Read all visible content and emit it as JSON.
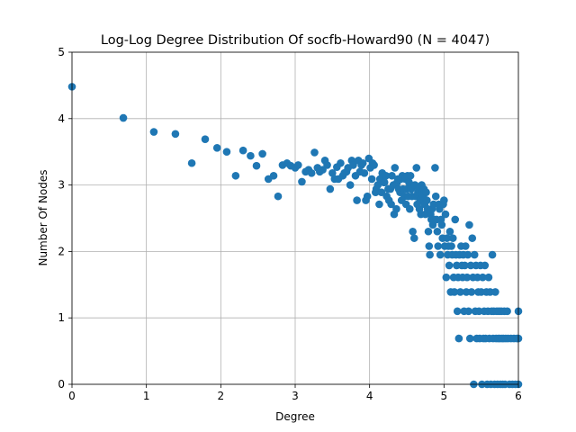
{
  "chart_data": {
    "type": "scatter",
    "title": "Log-Log Degree Distribution Of socfb-Howard90 (N = 4047)",
    "xlabel": "Degree",
    "ylabel": "Number Of Nodes",
    "xlim": [
      0,
      6
    ],
    "ylim": [
      0,
      5
    ],
    "xticks": [
      "0",
      "1",
      "2",
      "3",
      "4",
      "5",
      "6"
    ],
    "yticks": [
      "0",
      "1",
      "2",
      "3",
      "4",
      "5"
    ],
    "grid": true,
    "marker_color": "#1f77b4",
    "points": [
      [
        0.0,
        4.48
      ],
      [
        0.69,
        4.01
      ],
      [
        1.1,
        3.8
      ],
      [
        1.39,
        3.77
      ],
      [
        1.61,
        3.33
      ],
      [
        1.79,
        3.69
      ],
      [
        1.95,
        3.56
      ],
      [
        2.08,
        3.5
      ],
      [
        2.2,
        3.14
      ],
      [
        2.3,
        3.52
      ],
      [
        2.4,
        3.44
      ],
      [
        2.48,
        3.29
      ],
      [
        2.56,
        3.47
      ],
      [
        2.64,
        3.09
      ],
      [
        2.71,
        3.14
      ],
      [
        2.77,
        2.83
      ],
      [
        2.83,
        3.3
      ],
      [
        2.89,
        3.33
      ],
      [
        2.94,
        3.29
      ],
      [
        3.0,
        3.26
      ],
      [
        3.04,
        3.3
      ],
      [
        3.09,
        3.05
      ],
      [
        3.14,
        3.2
      ],
      [
        3.18,
        3.23
      ],
      [
        3.22,
        3.18
      ],
      [
        3.26,
        3.49
      ],
      [
        3.3,
        3.26
      ],
      [
        3.33,
        3.2
      ],
      [
        3.37,
        3.23
      ],
      [
        3.4,
        3.37
      ],
      [
        3.43,
        3.3
      ],
      [
        3.47,
        2.94
      ],
      [
        3.5,
        3.18
      ],
      [
        3.53,
        3.09
      ],
      [
        3.56,
        3.27
      ],
      [
        3.58,
        3.09
      ],
      [
        3.61,
        3.33
      ],
      [
        3.64,
        3.14
      ],
      [
        3.66,
        3.18
      ],
      [
        3.69,
        3.2
      ],
      [
        3.71,
        3.26
      ],
      [
        3.74,
        3.0
      ],
      [
        3.76,
        3.37
      ],
      [
        3.78,
        3.3
      ],
      [
        3.81,
        3.14
      ],
      [
        3.83,
        2.77
      ],
      [
        3.85,
        3.37
      ],
      [
        3.87,
        3.2
      ],
      [
        3.89,
        3.3
      ],
      [
        3.91,
        3.33
      ],
      [
        3.93,
        3.18
      ],
      [
        3.95,
        2.77
      ],
      [
        3.97,
        2.83
      ],
      [
        3.99,
        3.4
      ],
      [
        4.01,
        3.26
      ],
      [
        4.03,
        3.09
      ],
      [
        4.04,
        3.33
      ],
      [
        4.06,
        3.3
      ],
      [
        4.08,
        2.89
      ],
      [
        4.09,
        2.94
      ],
      [
        4.11,
        3.0
      ],
      [
        4.13,
        2.71
      ],
      [
        4.14,
        3.09
      ],
      [
        4.16,
        2.89
      ],
      [
        4.17,
        3.18
      ],
      [
        4.19,
        3.04
      ],
      [
        4.2,
        3.04
      ],
      [
        4.22,
        3.14
      ],
      [
        4.23,
        2.83
      ],
      [
        4.25,
        2.94
      ],
      [
        4.26,
        2.77
      ],
      [
        4.28,
        2.94
      ],
      [
        4.29,
        2.71
      ],
      [
        4.3,
        3.14
      ],
      [
        4.32,
        3.0
      ],
      [
        4.33,
        2.56
      ],
      [
        4.34,
        3.26
      ],
      [
        4.36,
        2.64
      ],
      [
        4.37,
        3.04
      ],
      [
        4.38,
        3.09
      ],
      [
        4.39,
        2.94
      ],
      [
        4.41,
        2.89
      ],
      [
        4.42,
        3.09
      ],
      [
        4.43,
        2.77
      ],
      [
        4.44,
        3.14
      ],
      [
        4.45,
        2.94
      ],
      [
        4.47,
        2.83
      ],
      [
        4.48,
        3.09
      ],
      [
        4.49,
        2.71
      ],
      [
        4.5,
        2.94
      ],
      [
        4.51,
        3.14
      ],
      [
        4.52,
        2.83
      ],
      [
        4.53,
        3.04
      ],
      [
        4.54,
        2.64
      ],
      [
        4.55,
        3.14
      ],
      [
        4.56,
        2.94
      ],
      [
        4.57,
        2.83
      ],
      [
        4.58,
        2.3
      ],
      [
        4.6,
        2.2
      ],
      [
        4.61,
        3.0
      ],
      [
        4.62,
        2.83
      ],
      [
        4.63,
        3.26
      ],
      [
        4.64,
        2.71
      ],
      [
        4.65,
        2.89
      ],
      [
        4.66,
        2.94
      ],
      [
        4.67,
        2.64
      ],
      [
        4.68,
        2.77
      ],
      [
        4.69,
        2.56
      ],
      [
        4.7,
        3.0
      ],
      [
        4.71,
        2.89
      ],
      [
        4.72,
        2.83
      ],
      [
        4.73,
        2.94
      ],
      [
        4.74,
        2.71
      ],
      [
        4.75,
        2.56
      ],
      [
        4.76,
        2.89
      ],
      [
        4.77,
        2.77
      ],
      [
        4.78,
        2.64
      ],
      [
        4.79,
        2.3
      ],
      [
        4.8,
        2.08
      ],
      [
        4.81,
        1.95
      ],
      [
        4.82,
        2.56
      ],
      [
        4.83,
        2.48
      ],
      [
        4.84,
        2.64
      ],
      [
        4.85,
        2.4
      ],
      [
        4.86,
        2.71
      ],
      [
        4.87,
        2.48
      ],
      [
        4.88,
        3.26
      ],
      [
        4.89,
        2.83
      ],
      [
        4.9,
        2.48
      ],
      [
        4.91,
        2.3
      ],
      [
        4.92,
        2.08
      ],
      [
        4.93,
        2.71
      ],
      [
        4.94,
        2.64
      ],
      [
        4.95,
        1.95
      ],
      [
        4.96,
        2.48
      ],
      [
        4.97,
        2.4
      ],
      [
        4.98,
        2.2
      ],
      [
        4.99,
        2.71
      ],
      [
        5.0,
        2.77
      ],
      [
        5.01,
        2.08
      ],
      [
        5.02,
        2.56
      ],
      [
        5.03,
        1.61
      ],
      [
        5.04,
        2.2
      ],
      [
        5.05,
        1.95
      ],
      [
        5.06,
        2.08
      ],
      [
        5.07,
        1.79
      ],
      [
        5.08,
        2.3
      ],
      [
        5.09,
        1.39
      ],
      [
        5.1,
        2.08
      ],
      [
        5.11,
        1.95
      ],
      [
        5.12,
        2.2
      ],
      [
        5.13,
        1.61
      ],
      [
        5.14,
        1.39
      ],
      [
        5.15,
        2.48
      ],
      [
        5.16,
        1.95
      ],
      [
        5.17,
        1.79
      ],
      [
        5.18,
        1.1
      ],
      [
        5.19,
        1.61
      ],
      [
        5.2,
        0.69
      ],
      [
        5.21,
        1.95
      ],
      [
        5.22,
        1.39
      ],
      [
        5.23,
        2.08
      ],
      [
        5.24,
        1.79
      ],
      [
        5.25,
        1.61
      ],
      [
        5.26,
        1.95
      ],
      [
        5.27,
        1.1
      ],
      [
        5.28,
        1.79
      ],
      [
        5.29,
        2.08
      ],
      [
        5.3,
        1.39
      ],
      [
        5.31,
        1.61
      ],
      [
        5.32,
        1.95
      ],
      [
        5.33,
        1.1
      ],
      [
        5.34,
        2.4
      ],
      [
        5.35,
        0.69
      ],
      [
        5.36,
        1.79
      ],
      [
        5.37,
        1.39
      ],
      [
        5.38,
        2.2
      ],
      [
        5.39,
        1.61
      ],
      [
        5.4,
        0.0
      ],
      [
        5.41,
        1.95
      ],
      [
        5.42,
        1.1
      ],
      [
        5.43,
        1.79
      ],
      [
        5.44,
        0.69
      ],
      [
        5.45,
        1.61
      ],
      [
        5.46,
        1.39
      ],
      [
        5.47,
        1.1
      ],
      [
        5.48,
        0.69
      ],
      [
        5.49,
        1.79
      ],
      [
        5.5,
        1.39
      ],
      [
        5.51,
        0.0
      ],
      [
        5.52,
        1.61
      ],
      [
        5.53,
        0.69
      ],
      [
        5.54,
        1.1
      ],
      [
        5.55,
        1.79
      ],
      [
        5.56,
        0.69
      ],
      [
        5.57,
        1.39
      ],
      [
        5.58,
        0.0
      ],
      [
        5.59,
        1.1
      ],
      [
        5.6,
        1.61
      ],
      [
        5.61,
        0.69
      ],
      [
        5.62,
        1.39
      ],
      [
        5.63,
        0.0
      ],
      [
        5.64,
        1.1
      ],
      [
        5.65,
        1.95
      ],
      [
        5.66,
        0.69
      ],
      [
        5.67,
        1.1
      ],
      [
        5.68,
        0.0
      ],
      [
        5.69,
        1.39
      ],
      [
        5.7,
        0.69
      ],
      [
        5.71,
        1.1
      ],
      [
        5.72,
        0.0
      ],
      [
        5.73,
        0.69
      ],
      [
        5.74,
        1.1
      ],
      [
        5.75,
        0.69
      ],
      [
        5.76,
        0.0
      ],
      [
        5.77,
        1.1
      ],
      [
        5.78,
        0.69
      ],
      [
        5.79,
        0.0
      ],
      [
        5.8,
        0.69
      ],
      [
        5.81,
        1.1
      ],
      [
        5.82,
        0.0
      ],
      [
        5.83,
        0.69
      ],
      [
        5.85,
        1.1
      ],
      [
        5.86,
        0.69
      ],
      [
        5.88,
        0.0
      ],
      [
        5.9,
        0.69
      ],
      [
        5.92,
        0.0
      ],
      [
        5.94,
        0.69
      ],
      [
        5.96,
        0.0
      ],
      [
        5.98,
        0.69
      ],
      [
        6.0,
        1.1
      ],
      [
        6.0,
        0.69
      ],
      [
        6.0,
        0.0
      ]
    ]
  }
}
